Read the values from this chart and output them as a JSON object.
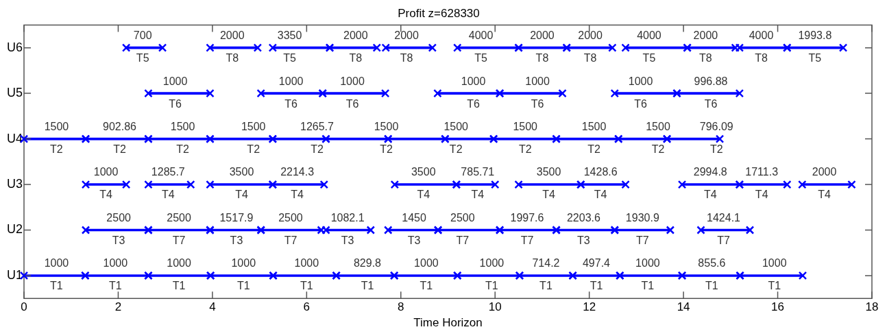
{
  "chart_data": {
    "type": "bar",
    "orientation": "horizontal",
    "title": "Profit z=628330",
    "xlabel": "Time Horizon",
    "categories": [
      "U6",
      "U5",
      "U4",
      "U3",
      "U2",
      "U1"
    ],
    "xlim": [
      0,
      18
    ],
    "xticks": [
      0,
      2,
      4,
      6,
      8,
      10,
      12,
      14,
      16,
      18
    ],
    "marker": "cross",
    "legend": false,
    "series": [
      {
        "color": "#0000ff",
        "base": [
          2.17,
          2.64,
          0,
          1.31,
          1.31,
          0
        ],
        "values": [
          0.77,
          1.31,
          1.31,
          0.86,
          1.33,
          1.3
        ]
      },
      {
        "color": "#0000ff",
        "base": [
          3.95,
          5.03,
          1.31,
          2.64,
          2.64,
          1.3
        ],
        "values": [
          1.01,
          1.31,
          1.33,
          0.9,
          1.31,
          1.34
        ]
      },
      {
        "color": "#0000ff",
        "base": [
          5.28,
          6.34,
          2.64,
          3.95,
          3.95,
          2.64
        ],
        "values": [
          1.21,
          1.33,
          1.31,
          1.33,
          1.08,
          1.32
        ]
      },
      {
        "color": "#0000ff",
        "base": [
          6.49,
          8.78,
          3.95,
          5.28,
          5.03,
          3.96
        ],
        "values": [
          1.0,
          1.32,
          1.33,
          1.09,
          1.28,
          1.33
        ]
      },
      {
        "color": "#0000ff",
        "base": [
          7.68,
          10.1,
          5.28,
          7.87,
          6.41,
          5.29
        ],
        "values": [
          0.99,
          1.33,
          1.13,
          1.31,
          0.95,
          1.34
        ]
      },
      {
        "color": "#0000ff",
        "base": [
          9.2,
          12.54,
          6.41,
          9.18,
          7.73,
          6.63
        ],
        "values": [
          1.3,
          1.32,
          1.32,
          0.82,
          1.06,
          1.23
        ]
      },
      {
        "color": "#0000ff",
        "base": [
          10.5,
          13.86,
          7.73,
          10.5,
          8.79,
          7.86
        ],
        "values": [
          1.02,
          1.33,
          1.21,
          1.32,
          1.31,
          1.34
        ]
      },
      {
        "color": "#0000ff",
        "base": [
          11.52,
          null,
          8.94,
          11.82,
          10.1,
          9.2
        ],
        "values": [
          0.97,
          null,
          1.03,
          0.95,
          1.2,
          1.32
        ]
      },
      {
        "color": "#0000ff",
        "base": [
          12.77,
          null,
          9.97,
          13.97,
          11.3,
          10.52
        ],
        "values": [
          1.31,
          null,
          1.33,
          1.22,
          1.24,
          1.13
        ]
      },
      {
        "color": "#0000ff",
        "base": [
          14.08,
          null,
          11.3,
          15.19,
          12.54,
          11.65
        ],
        "values": [
          1.02,
          null,
          1.32,
          1.01,
          1.18,
          1.0
        ]
      },
      {
        "color": "#0000ff",
        "base": [
          15.19,
          null,
          12.62,
          16.52,
          14.37,
          12.65
        ],
        "values": [
          1.01,
          null,
          1.03,
          1.05,
          1.04,
          1.32
        ]
      },
      {
        "color": "#0000ff",
        "base": [
          16.2,
          null,
          13.65,
          null,
          null,
          13.97
        ],
        "values": [
          1.19,
          null,
          1.12,
          null,
          null,
          1.23
        ]
      },
      {
        "color": "#0000ff",
        "base": [
          null,
          null,
          null,
          null,
          null,
          15.2
        ],
        "values": [
          null,
          null,
          null,
          null,
          null,
          1.33
        ]
      }
    ],
    "annotations": [
      {
        "text": "700",
        "x": 2.52,
        "y": "U6"
      },
      {
        "text": "T5",
        "x": 2.52,
        "y": "U6"
      },
      {
        "text": "2000",
        "x": 4.42,
        "y": "U6"
      },
      {
        "text": "T8",
        "x": 4.42,
        "y": "U6"
      },
      {
        "text": "3350",
        "x": 5.64,
        "y": "U6"
      },
      {
        "text": "T5",
        "x": 5.64,
        "y": "U6"
      },
      {
        "text": "2000",
        "x": 7.04,
        "y": "U6"
      },
      {
        "text": "T8",
        "x": 7.04,
        "y": "U6"
      },
      {
        "text": "2000",
        "x": 8.12,
        "y": "U6"
      },
      {
        "text": "T8",
        "x": 8.12,
        "y": "U6"
      },
      {
        "text": "4000",
        "x": 9.7,
        "y": "U6"
      },
      {
        "text": "T5",
        "x": 9.7,
        "y": "U6"
      },
      {
        "text": "2000",
        "x": 11.0,
        "y": "U6"
      },
      {
        "text": "T8",
        "x": 11.0,
        "y": "U6"
      },
      {
        "text": "2000",
        "x": 12.02,
        "y": "U6"
      },
      {
        "text": "T8",
        "x": 12.02,
        "y": "U6"
      },
      {
        "text": "4000",
        "x": 13.27,
        "y": "U6"
      },
      {
        "text": "T5",
        "x": 13.27,
        "y": "U6"
      },
      {
        "text": "2000",
        "x": 14.47,
        "y": "U6"
      },
      {
        "text": "T8",
        "x": 14.47,
        "y": "U6"
      },
      {
        "text": "4000",
        "x": 15.65,
        "y": "U6"
      },
      {
        "text": "T8",
        "x": 15.65,
        "y": "U6"
      },
      {
        "text": "1993.8",
        "x": 16.79,
        "y": "U6"
      },
      {
        "text": "T5",
        "x": 16.79,
        "y": "U6"
      },
      {
        "text": "1000",
        "x": 3.21,
        "y": "U5"
      },
      {
        "text": "T6",
        "x": 3.21,
        "y": "U5"
      },
      {
        "text": "1000",
        "x": 5.67,
        "y": "U5"
      },
      {
        "text": "T6",
        "x": 5.67,
        "y": "U5"
      },
      {
        "text": "1000",
        "x": 6.97,
        "y": "U5"
      },
      {
        "text": "T6",
        "x": 6.97,
        "y": "U5"
      },
      {
        "text": "1000",
        "x": 9.54,
        "y": "U5"
      },
      {
        "text": "T6",
        "x": 9.54,
        "y": "U5"
      },
      {
        "text": "1000",
        "x": 10.9,
        "y": "U5"
      },
      {
        "text": "T6",
        "x": 10.9,
        "y": "U5"
      },
      {
        "text": "1000",
        "x": 13.09,
        "y": "U5"
      },
      {
        "text": "T6",
        "x": 13.09,
        "y": "U5"
      },
      {
        "text": "996.88",
        "x": 14.58,
        "y": "U5"
      },
      {
        "text": "T6",
        "x": 14.58,
        "y": "U5"
      },
      {
        "text": "1500",
        "x": 0.69,
        "y": "U4"
      },
      {
        "text": "T2",
        "x": 0.69,
        "y": "U4"
      },
      {
        "text": "902.86",
        "x": 2.03,
        "y": "U4"
      },
      {
        "text": "T2",
        "x": 2.03,
        "y": "U4"
      },
      {
        "text": "1500",
        "x": 3.37,
        "y": "U4"
      },
      {
        "text": "T2",
        "x": 3.37,
        "y": "U4"
      },
      {
        "text": "1500",
        "x": 4.87,
        "y": "U4"
      },
      {
        "text": "T2",
        "x": 4.87,
        "y": "U4"
      },
      {
        "text": "1265.7",
        "x": 6.22,
        "y": "U4"
      },
      {
        "text": "T2",
        "x": 6.22,
        "y": "U4"
      },
      {
        "text": "1500",
        "x": 7.69,
        "y": "U4"
      },
      {
        "text": "T2",
        "x": 7.69,
        "y": "U4"
      },
      {
        "text": "1500",
        "x": 9.17,
        "y": "U4"
      },
      {
        "text": "T2",
        "x": 9.17,
        "y": "U4"
      },
      {
        "text": "1500",
        "x": 10.64,
        "y": "U4"
      },
      {
        "text": "T2",
        "x": 10.64,
        "y": "U4"
      },
      {
        "text": "1500",
        "x": 12.1,
        "y": "U4"
      },
      {
        "text": "T2",
        "x": 12.1,
        "y": "U4"
      },
      {
        "text": "1500",
        "x": 13.46,
        "y": "U4"
      },
      {
        "text": "T2",
        "x": 13.46,
        "y": "U4"
      },
      {
        "text": "796.09",
        "x": 14.7,
        "y": "U4"
      },
      {
        "text": "T2",
        "x": 14.7,
        "y": "U4"
      },
      {
        "text": "1000",
        "x": 1.74,
        "y": "U3"
      },
      {
        "text": "T4",
        "x": 1.74,
        "y": "U3"
      },
      {
        "text": "1285.7",
        "x": 3.06,
        "y": "U3"
      },
      {
        "text": "T4",
        "x": 3.06,
        "y": "U3"
      },
      {
        "text": "3500",
        "x": 4.62,
        "y": "U3"
      },
      {
        "text": "T4",
        "x": 4.62,
        "y": "U3"
      },
      {
        "text": "2214.3",
        "x": 5.8,
        "y": "U3"
      },
      {
        "text": "T4",
        "x": 5.8,
        "y": "U3"
      },
      {
        "text": "3500",
        "x": 8.48,
        "y": "U3"
      },
      {
        "text": "T4",
        "x": 8.48,
        "y": "U3"
      },
      {
        "text": "785.71",
        "x": 9.63,
        "y": "U3"
      },
      {
        "text": "T4",
        "x": 9.63,
        "y": "U3"
      },
      {
        "text": "3500",
        "x": 11.14,
        "y": "U3"
      },
      {
        "text": "T4",
        "x": 11.14,
        "y": "U3"
      },
      {
        "text": "1428.6",
        "x": 12.24,
        "y": "U3"
      },
      {
        "text": "T4",
        "x": 12.24,
        "y": "U3"
      },
      {
        "text": "2994.8",
        "x": 14.57,
        "y": "U3"
      },
      {
        "text": "T4",
        "x": 14.57,
        "y": "U3"
      },
      {
        "text": "1711.3",
        "x": 15.66,
        "y": "U3"
      },
      {
        "text": "T4",
        "x": 15.66,
        "y": "U3"
      },
      {
        "text": "2000",
        "x": 16.99,
        "y": "U3"
      },
      {
        "text": "T4",
        "x": 16.99,
        "y": "U3"
      },
      {
        "text": "2500",
        "x": 2.01,
        "y": "U2"
      },
      {
        "text": "T3",
        "x": 2.01,
        "y": "U2"
      },
      {
        "text": "2500",
        "x": 3.29,
        "y": "U2"
      },
      {
        "text": "T7",
        "x": 3.29,
        "y": "U2"
      },
      {
        "text": "1517.9",
        "x": 4.51,
        "y": "U2"
      },
      {
        "text": "T3",
        "x": 4.51,
        "y": "U2"
      },
      {
        "text": "2500",
        "x": 5.66,
        "y": "U2"
      },
      {
        "text": "T7",
        "x": 5.66,
        "y": "U2"
      },
      {
        "text": "1082.1",
        "x": 6.87,
        "y": "U2"
      },
      {
        "text": "T3",
        "x": 6.87,
        "y": "U2"
      },
      {
        "text": "1450",
        "x": 8.28,
        "y": "U2"
      },
      {
        "text": "T3",
        "x": 8.28,
        "y": "U2"
      },
      {
        "text": "2500",
        "x": 9.31,
        "y": "U2"
      },
      {
        "text": "T7",
        "x": 9.31,
        "y": "U2"
      },
      {
        "text": "1997.6",
        "x": 10.68,
        "y": "U2"
      },
      {
        "text": "T7",
        "x": 10.68,
        "y": "U2"
      },
      {
        "text": "2203.6",
        "x": 11.88,
        "y": "U2"
      },
      {
        "text": "T3",
        "x": 11.88,
        "y": "U2"
      },
      {
        "text": "1930.9",
        "x": 13.13,
        "y": "U2"
      },
      {
        "text": "T7",
        "x": 13.13,
        "y": "U2"
      },
      {
        "text": "1424.1",
        "x": 14.85,
        "y": "U2"
      },
      {
        "text": "T7",
        "x": 14.85,
        "y": "U2"
      },
      {
        "text": "1000",
        "x": 0.69,
        "y": "U1"
      },
      {
        "text": "T1",
        "x": 0.69,
        "y": "U1"
      },
      {
        "text": "1000",
        "x": 1.94,
        "y": "U1"
      },
      {
        "text": "T1",
        "x": 1.94,
        "y": "U1"
      },
      {
        "text": "1000",
        "x": 3.29,
        "y": "U1"
      },
      {
        "text": "T1",
        "x": 3.29,
        "y": "U1"
      },
      {
        "text": "1000",
        "x": 4.66,
        "y": "U1"
      },
      {
        "text": "T1",
        "x": 4.66,
        "y": "U1"
      },
      {
        "text": "1000",
        "x": 6.0,
        "y": "U1"
      },
      {
        "text": "T1",
        "x": 6.0,
        "y": "U1"
      },
      {
        "text": "829.8",
        "x": 7.29,
        "y": "U1"
      },
      {
        "text": "T1",
        "x": 7.29,
        "y": "U1"
      },
      {
        "text": "1000",
        "x": 8.54,
        "y": "U1"
      },
      {
        "text": "T1",
        "x": 8.54,
        "y": "U1"
      },
      {
        "text": "1000",
        "x": 9.93,
        "y": "U1"
      },
      {
        "text": "T1",
        "x": 9.93,
        "y": "U1"
      },
      {
        "text": "714.2",
        "x": 11.08,
        "y": "U1"
      },
      {
        "text": "T1",
        "x": 11.08,
        "y": "U1"
      },
      {
        "text": "497.4",
        "x": 12.15,
        "y": "U1"
      },
      {
        "text": "T1",
        "x": 12.15,
        "y": "U1"
      },
      {
        "text": "1000",
        "x": 13.24,
        "y": "U1"
      },
      {
        "text": "T1",
        "x": 13.24,
        "y": "U1"
      },
      {
        "text": "855.6",
        "x": 14.6,
        "y": "U1"
      },
      {
        "text": "T1",
        "x": 14.6,
        "y": "U1"
      },
      {
        "text": "1000",
        "x": 15.93,
        "y": "U1"
      },
      {
        "text": "T1",
        "x": 15.93,
        "y": "U1"
      }
    ]
  }
}
